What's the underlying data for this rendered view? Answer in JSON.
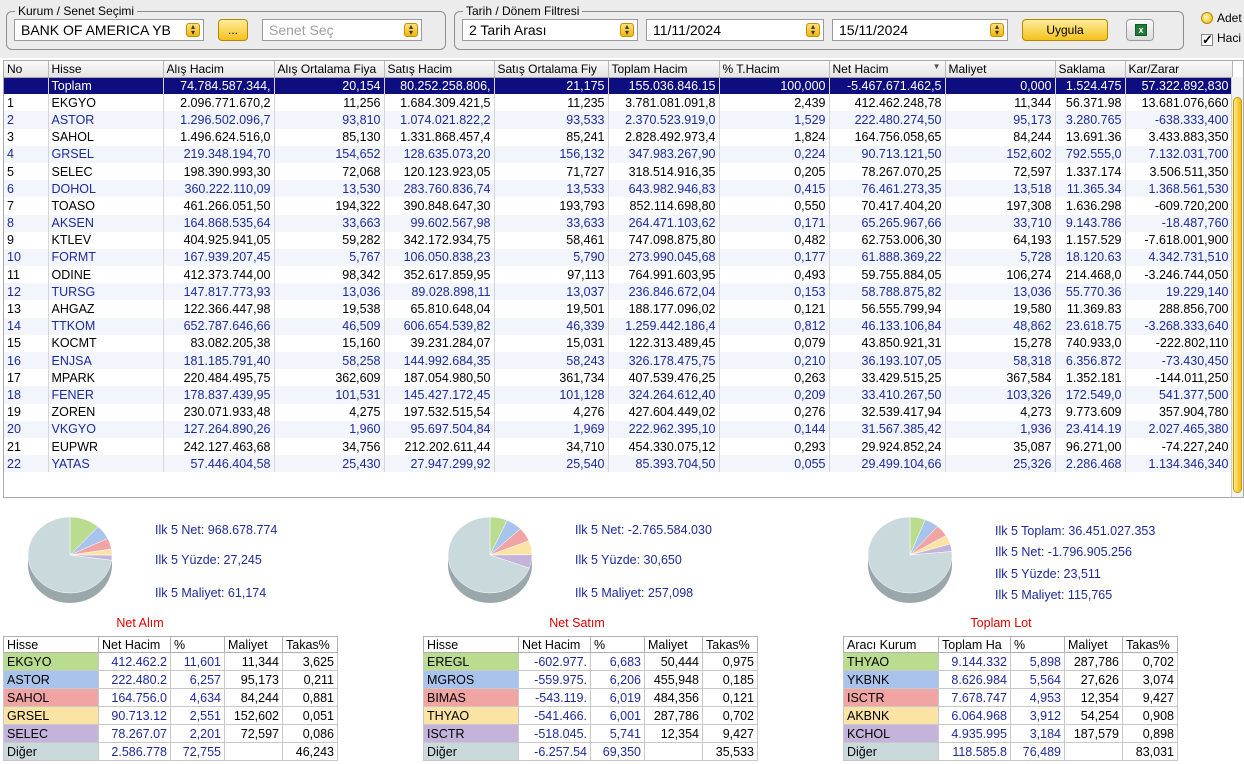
{
  "filters": {
    "kurum_legend": "Kurum / Senet Seçimi",
    "kurum_value": "BANK OF AMERICA YB",
    "more_button": "...",
    "senet_placeholder": "Senet Seç",
    "tarih_legend": "Tarih / Dönem Filtresi",
    "period_value": "2 Tarih Arası",
    "start_date": "11/11/2024",
    "end_date": "15/11/2024",
    "apply_button": "Uygula",
    "option_adet": "Adet",
    "option_hacim": "Haci"
  },
  "grid": {
    "columns": [
      "No",
      "Hisse",
      "Alış Hacim",
      "Alış Ortalama Fiya",
      "Satış Hacim",
      "Satış Ortalama Fiy",
      "Toplam Hacim",
      "% T.Hacim",
      "Net Hacim",
      "Maliyet",
      "Saklama",
      "Kar/Zarar"
    ],
    "total": [
      "",
      "Toplam",
      "74.784.587.344,",
      "20,154",
      "80.252.258.806,",
      "21,175",
      "155.036.846.15",
      "100,000",
      "-5.467.671.462,5",
      "0,000",
      "1.524.475",
      "57.322.892,830"
    ],
    "rows": [
      [
        "1",
        "EKGYO",
        "2.096.771.670,2",
        "11,256",
        "1.684.309.421,5",
        "11,235",
        "3.781.081.091,8",
        "2,439",
        "412.462.248,78",
        "11,344",
        "56.371.98",
        "13.681.076,660"
      ],
      [
        "2",
        "ASTOR",
        "1.296.502.096,7",
        "93,810",
        "1.074.021.822,2",
        "93,533",
        "2.370.523.919,0",
        "1,529",
        "222.480.274,50",
        "95,173",
        "3.280.765",
        "-638.333,400"
      ],
      [
        "3",
        "SAHOL",
        "1.496.624.516,0",
        "85,130",
        "1.331.868.457,4",
        "85,241",
        "2.828.492.973,4",
        "1,824",
        "164.756.058,65",
        "84,244",
        "13.691.36",
        "3.433.883,350"
      ],
      [
        "4",
        "GRSEL",
        "219.348.194,70",
        "154,652",
        "128.635.073,20",
        "156,132",
        "347.983.267,90",
        "0,224",
        "90.713.121,50",
        "152,602",
        "792.555,0",
        "7.132.031,700"
      ],
      [
        "5",
        "SELEC",
        "198.390.993,30",
        "72,068",
        "120.123.923,05",
        "71,727",
        "318.514.916,35",
        "0,205",
        "78.267.070,25",
        "72,597",
        "1.337.174",
        "3.506.511,350"
      ],
      [
        "6",
        "DOHOL",
        "360.222.110,09",
        "13,530",
        "283.760.836,74",
        "13,533",
        "643.982.946,83",
        "0,415",
        "76.461.273,35",
        "13,518",
        "11.365.34",
        "1.368.561,530"
      ],
      [
        "7",
        "TOASO",
        "461.266.051,50",
        "194,322",
        "390.848.647,30",
        "193,793",
        "852.114.698,80",
        "0,550",
        "70.417.404,20",
        "197,308",
        "1.636.298",
        "-609.720,200"
      ],
      [
        "8",
        "AKSEN",
        "164.868.535,64",
        "33,663",
        "99.602.567,98",
        "33,633",
        "264.471.103,62",
        "0,171",
        "65.265.967,66",
        "33,710",
        "9.143.786",
        "-18.487,760"
      ],
      [
        "9",
        "KTLEV",
        "404.925.941,05",
        "59,282",
        "342.172.934,75",
        "58,461",
        "747.098.875,80",
        "0,482",
        "62.753.006,30",
        "64,193",
        "1.157.529",
        "-7.618.001,900"
      ],
      [
        "10",
        "FORMT",
        "167.939.207,45",
        "5,767",
        "106.050.838,23",
        "5,790",
        "273.990.045,68",
        "0,177",
        "61.888.369,22",
        "5,728",
        "18.120.63",
        "4.342.731,510"
      ],
      [
        "11",
        "ODINE",
        "412.373.744,00",
        "98,342",
        "352.617.859,95",
        "97,113",
        "764.991.603,95",
        "0,493",
        "59.755.884,05",
        "106,274",
        "214.468,0",
        "-3.246.744,050"
      ],
      [
        "12",
        "TURSG",
        "147.817.773,93",
        "13,036",
        "89.028.898,11",
        "13,037",
        "236.846.672,04",
        "0,153",
        "58.788.875,82",
        "13,036",
        "55.770.36",
        "19.229,140"
      ],
      [
        "13",
        "AHGAZ",
        "122.366.447,98",
        "19,538",
        "65.810.648,04",
        "19,501",
        "188.177.096,02",
        "0,121",
        "56.555.799,94",
        "19,580",
        "11.369.83",
        "288.856,700"
      ],
      [
        "14",
        "TTKOM",
        "652.787.646,66",
        "46,509",
        "606.654.539,82",
        "46,339",
        "1.259.442.186,4",
        "0,812",
        "46.133.106,84",
        "48,862",
        "23.618.75",
        "-3.268.333,640"
      ],
      [
        "15",
        "KOCMT",
        "83.082.205,38",
        "15,160",
        "39.231.284,07",
        "15,031",
        "122.313.489,45",
        "0,079",
        "43.850.921,31",
        "15,278",
        "740.933,0",
        "-222.802,110"
      ],
      [
        "16",
        "ENJSA",
        "181.185.791,40",
        "58,258",
        "144.992.684,35",
        "58,243",
        "326.178.475,75",
        "0,210",
        "36.193.107,05",
        "58,318",
        "6.356.872",
        "-73.430,450"
      ],
      [
        "17",
        "MPARK",
        "220.484.495,75",
        "362,609",
        "187.054.980,50",
        "361,734",
        "407.539.476,25",
        "0,263",
        "33.429.515,25",
        "367,584",
        "1.352.181",
        "-144.011,250"
      ],
      [
        "18",
        "FENER",
        "178.837.439,95",
        "101,531",
        "145.427.172,45",
        "101,128",
        "324.264.612,40",
        "0,209",
        "33.410.267,50",
        "103,326",
        "172.549,0",
        "541.377,500"
      ],
      [
        "19",
        "ZOREN",
        "230.071.933,48",
        "4,275",
        "197.532.515,54",
        "4,276",
        "427.604.449,02",
        "0,276",
        "32.539.417,94",
        "4,273",
        "9.773.609",
        "357.904,780"
      ],
      [
        "20",
        "VKGYO",
        "127.264.890,26",
        "1,960",
        "95.697.504,84",
        "1,969",
        "222.962.395,10",
        "0,144",
        "31.567.385,42",
        "1,936",
        "23.414.19",
        "2.027.465,380"
      ],
      [
        "21",
        "EUPWR",
        "242.127.463,68",
        "34,756",
        "212.202.611,44",
        "34,710",
        "454.330.075,12",
        "0,293",
        "29.924.852,24",
        "35,087",
        "96.271,00",
        "-74.227,240"
      ],
      [
        "22",
        "YATAS",
        "57.446.404,58",
        "25,430",
        "27.947.299,92",
        "25,540",
        "85.393.704,50",
        "0,055",
        "29.499.104,66",
        "25,326",
        "2.286.468",
        "1.134.346,340"
      ]
    ]
  },
  "panels": [
    {
      "title": "Net Alım",
      "stats": [
        "Ilk 5 Net: 968.678.774",
        "Ilk 5 Yüzde: 27,245",
        "Ilk 5 Maliyet: 61,174"
      ],
      "columns": [
        "Hisse",
        "Net Hacim",
        "%",
        "Maliyet",
        "Takas%"
      ],
      "rows": [
        [
          "EKGYO",
          "412.462.2",
          "11,601",
          "11,344",
          "3,625"
        ],
        [
          "ASTOR",
          "222.480.2",
          "6,257",
          "95,173",
          "0,211"
        ],
        [
          "SAHOL",
          "164.756.0",
          "4,634",
          "84,244",
          "0,881"
        ],
        [
          "GRSEL",
          "90.713.12",
          "2,551",
          "152,602",
          "0,051"
        ],
        [
          "SELEC",
          "78.267.07",
          "2,201",
          "72,597",
          "0,086"
        ],
        [
          "Diğer",
          "2.586.778",
          "72,755",
          "",
          "46,243"
        ]
      ],
      "slices": [
        11.601,
        6.257,
        4.634,
        2.551,
        2.201,
        72.755
      ]
    },
    {
      "title": "Net Satım",
      "stats": [
        "Ilk 5 Net: -2.765.584.030",
        "Ilk 5 Yüzde: 30,650",
        "Ilk 5 Maliyet: 257,098"
      ],
      "columns": [
        "Hisse",
        "Net Hacim",
        "%",
        "Maliyet",
        "Takas%"
      ],
      "rows": [
        [
          "EREGL",
          "-602.977.",
          "6,683",
          "50,444",
          "0,975"
        ],
        [
          "MGROS",
          "-559.975.",
          "6,206",
          "455,948",
          "0,185"
        ],
        [
          "BIMAS",
          "-543.119.",
          "6,019",
          "484,356",
          "0,121"
        ],
        [
          "THYAO",
          "-541.466.",
          "6,001",
          "287,786",
          "0,702"
        ],
        [
          "ISCTR",
          "-518.045.",
          "5,741",
          "12,354",
          "9,427"
        ],
        [
          "Diğer",
          "-6.257.54",
          "69,350",
          "",
          "35,533"
        ]
      ],
      "slices": [
        6.683,
        6.206,
        6.019,
        6.001,
        5.741,
        69.35
      ]
    },
    {
      "title": "Toplam Lot",
      "stats": [
        "Ilk 5 Toplam: 36.451.027.353",
        "Ilk 5 Net: -1.796.905.256",
        "Ilk 5 Yüzde: 23,511",
        "Ilk 5 Maliyet: 115,765"
      ],
      "columns": [
        "Aracı Kurum",
        "Toplam Ha",
        "%",
        "Maliyet",
        "Takas%"
      ],
      "rows": [
        [
          "THYAO",
          "9.144.332",
          "5,898",
          "287,786",
          "0,702"
        ],
        [
          "YKBNK",
          "8.626.984",
          "5,564",
          "27,626",
          "3,074"
        ],
        [
          "ISCTR",
          "7.678.747",
          "4,953",
          "12,354",
          "9,427"
        ],
        [
          "AKBNK",
          "6.064.968",
          "3,912",
          "54,254",
          "0,908"
        ],
        [
          "KCHOL",
          "4.935.995",
          "3,184",
          "187,579",
          "0,898"
        ],
        [
          "Diğer",
          "118.585.8",
          "76,489",
          "",
          "83,031"
        ]
      ],
      "slices": [
        5.898,
        5.564,
        4.953,
        3.912,
        3.184,
        76.489
      ]
    }
  ],
  "colors": {
    "slice": [
      "#b9dc8f",
      "#a8c4ec",
      "#f1a4a4",
      "#fbe3a4",
      "#c4b4dc",
      "#c9d9dc"
    ],
    "total_row": "#0d0d80",
    "panel_title": "#e00000",
    "blue_text": "#1e2a9c"
  },
  "icons": [
    "dropdown-arrows-icon",
    "excel-icon",
    "radio-icon",
    "checkmark-icon",
    "sort-desc-icon"
  ]
}
